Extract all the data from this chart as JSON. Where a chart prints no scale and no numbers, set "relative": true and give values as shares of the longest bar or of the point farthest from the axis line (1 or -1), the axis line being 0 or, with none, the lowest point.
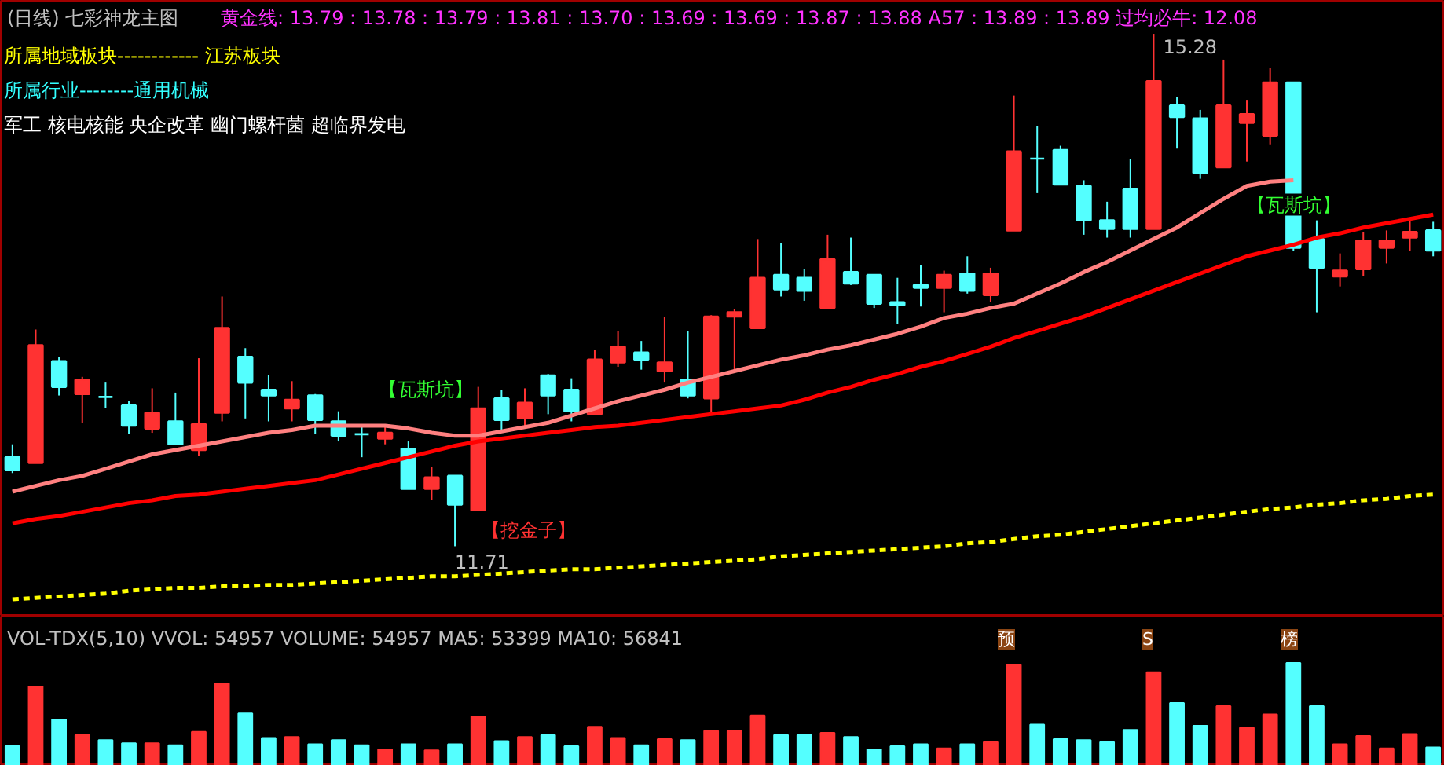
{
  "chart_data": [
    {
      "type": "candlestick",
      "title": "(日线)  七彩神龙主图",
      "subtitle": "黄金线: 13.79 : 13.78 : 13.79 : 13.81 : 13.70 : 13.69 : 13.69 : 13.87 : 13.88 A57 : 13.89 : 13.89  过均必牛: 12.08",
      "annotations": [
        "所属地域板块------------  江苏板块",
        "所属行业--------通用机械",
        "军工 核电核能 央企改革 幽门螺杆菌 超临界发电",
        "15.28",
        "11.71",
        "【挖金子】",
        "【瓦斯坑】",
        "【瓦斯坑】"
      ],
      "categories": [
        null,
        null,
        null,
        null,
        null,
        null,
        null,
        null,
        null,
        null,
        null,
        null,
        null,
        null,
        null,
        null,
        null,
        null,
        null,
        null,
        null,
        null,
        null,
        null,
        null,
        null,
        null,
        null,
        null,
        null,
        null,
        null,
        null,
        null,
        null,
        null,
        null,
        null,
        null,
        null,
        null,
        null,
        null,
        null,
        null,
        null,
        null,
        null,
        null,
        null,
        null,
        null,
        null,
        null,
        null,
        null,
        null,
        null,
        null,
        null,
        null,
        null
      ],
      "ylim": [
        11.22,
        15.51
      ],
      "tick_labels": false,
      "ohlc": [
        [
          12.33,
          12.42,
          12.22,
          12.24
        ],
        [
          12.29,
          13.22,
          12.29,
          13.11
        ],
        [
          13.0,
          13.03,
          12.76,
          12.82
        ],
        [
          12.77,
          12.89,
          12.57,
          12.87
        ],
        [
          12.75,
          12.85,
          12.67,
          12.75
        ],
        [
          12.69,
          12.72,
          12.49,
          12.55
        ],
        [
          12.53,
          12.81,
          12.5,
          12.64
        ],
        [
          12.58,
          12.78,
          12.42,
          12.42
        ],
        [
          12.38,
          13.02,
          12.34,
          12.56
        ],
        [
          12.64,
          13.45,
          12.58,
          13.23
        ],
        [
          13.03,
          13.09,
          12.6,
          12.85
        ],
        [
          12.8,
          12.9,
          12.58,
          12.76
        ],
        [
          12.67,
          12.86,
          12.58,
          12.73
        ],
        [
          12.76,
          12.77,
          12.49,
          12.59
        ],
        [
          12.58,
          12.65,
          12.44,
          12.48
        ],
        [
          12.49,
          12.55,
          12.33,
          12.49
        ],
        [
          12.46,
          12.56,
          12.42,
          12.5
        ],
        [
          12.39,
          12.44,
          12.11,
          12.11
        ],
        [
          12.11,
          12.26,
          12.03,
          12.19
        ],
        [
          12.2,
          12.2,
          11.71,
          12.0
        ],
        [
          11.96,
          12.82,
          11.96,
          12.67
        ],
        [
          12.74,
          12.8,
          12.52,
          12.59
        ],
        [
          12.6,
          12.81,
          12.55,
          12.71
        ],
        [
          12.9,
          12.91,
          12.63,
          12.76
        ],
        [
          12.8,
          12.88,
          12.58,
          12.65
        ],
        [
          12.63,
          13.08,
          12.63,
          13.01
        ],
        [
          12.99,
          13.21,
          12.96,
          13.1
        ],
        [
          13.06,
          13.14,
          12.94,
          13.01
        ],
        [
          12.93,
          13.31,
          12.85,
          12.99
        ],
        [
          12.87,
          13.21,
          12.74,
          12.76
        ],
        [
          12.74,
          13.32,
          12.63,
          13.31
        ],
        [
          13.31,
          13.36,
          12.93,
          13.34
        ],
        [
          13.23,
          13.85,
          13.23,
          13.58
        ],
        [
          13.6,
          13.82,
          13.45,
          13.5
        ],
        [
          13.58,
          13.64,
          13.42,
          13.49
        ],
        [
          13.37,
          13.88,
          13.37,
          13.71
        ],
        [
          13.62,
          13.86,
          13.53,
          13.54
        ],
        [
          13.6,
          13.6,
          13.37,
          13.4
        ],
        [
          13.41,
          13.58,
          13.26,
          13.39
        ],
        [
          13.53,
          13.67,
          13.38,
          13.51
        ],
        [
          13.51,
          13.63,
          13.34,
          13.6
        ],
        [
          13.61,
          13.73,
          13.47,
          13.49
        ],
        [
          13.46,
          13.65,
          13.41,
          13.61
        ],
        [
          13.91,
          14.85,
          13.91,
          14.46
        ],
        [
          14.41,
          14.64,
          14.17,
          14.41
        ],
        [
          14.47,
          14.5,
          14.23,
          14.23
        ],
        [
          14.22,
          14.26,
          13.88,
          13.98
        ],
        [
          13.98,
          14.11,
          13.86,
          13.92
        ],
        [
          14.2,
          14.41,
          13.86,
          13.92
        ],
        [
          13.92,
          15.28,
          13.92,
          14.95
        ],
        [
          14.78,
          14.84,
          14.48,
          14.7
        ],
        [
          14.69,
          14.75,
          14.27,
          14.31
        ],
        [
          14.35,
          15.1,
          14.35,
          14.78
        ],
        [
          14.66,
          14.82,
          14.39,
          14.72
        ],
        [
          14.57,
          15.04,
          14.51,
          14.94
        ],
        [
          14.94,
          14.94,
          13.77,
          13.79
        ],
        [
          13.85,
          13.98,
          13.34,
          13.65
        ],
        [
          13.59,
          13.75,
          13.52,
          13.63
        ],
        [
          13.64,
          13.9,
          13.59,
          13.84
        ],
        [
          13.79,
          13.91,
          13.68,
          13.84
        ],
        [
          13.86,
          13.99,
          13.77,
          13.9
        ],
        [
          13.91,
          13.97,
          13.73,
          13.77
        ]
      ],
      "colors": [
        "#54ffff",
        "#ff3232",
        "#54ffff",
        "#ff3232",
        "#54ffff",
        "#54ffff",
        "#ff3232",
        "#54ffff",
        "#ff3232",
        "#ff3232",
        "#54ffff",
        "#54ffff",
        "#ff3232",
        "#54ffff",
        "#54ffff",
        "#54ffff",
        "#ff3232",
        "#54ffff",
        "#ff3232",
        "#54ffff",
        "#ff3232",
        "#54ffff",
        "#ff3232",
        "#54ffff",
        "#54ffff",
        "#ff3232",
        "#ff3232",
        "#54ffff",
        "#ff3232",
        "#54ffff",
        "#ff3232",
        "#ff3232",
        "#ff3232",
        "#54ffff",
        "#54ffff",
        "#ff3232",
        "#54ffff",
        "#54ffff",
        "#54ffff",
        "#54ffff",
        "#ff3232",
        "#54ffff",
        "#ff3232",
        "#ff3232",
        "#54ffff",
        "#54ffff",
        "#54ffff",
        "#54ffff",
        "#54ffff",
        "#ff3232",
        "#54ffff",
        "#54ffff",
        "#ff3232",
        "#ff3232",
        "#ff3232",
        "#54ffff",
        "#54ffff",
        "#ff3232",
        "#ff3232",
        "#ff3232",
        "#ff3232",
        "#54ffff"
      ],
      "series": [
        {
          "type": "line",
          "color": "#ff0000",
          "values": [
            11.87,
            11.9,
            11.92,
            11.95,
            11.98,
            12.01,
            12.03,
            12.06,
            12.07,
            12.09,
            12.11,
            12.13,
            12.15,
            12.17,
            12.21,
            12.25,
            12.29,
            12.33,
            12.37,
            12.41,
            12.44,
            12.46,
            12.48,
            12.5,
            12.52,
            12.54,
            12.55,
            12.57,
            12.59,
            12.61,
            12.63,
            12.65,
            12.67,
            12.69,
            12.73,
            12.78,
            12.82,
            12.87,
            12.91,
            12.96,
            13.0,
            13.05,
            13.1,
            13.16,
            13.21,
            13.26,
            13.31,
            13.37,
            13.43,
            13.49,
            13.55,
            13.61,
            13.67,
            13.73,
            13.77,
            13.81,
            13.86,
            13.89,
            13.93,
            13.96,
            13.99,
            14.02
          ]
        },
        {
          "type": "line",
          "color": "#ff8080",
          "values": [
            12.09,
            12.13,
            12.17,
            12.2,
            12.25,
            12.3,
            12.35,
            12.38,
            12.41,
            12.44,
            12.47,
            12.5,
            12.52,
            12.55,
            12.55,
            12.55,
            12.55,
            12.53,
            12.5,
            12.48,
            12.48,
            12.51,
            12.54,
            12.57,
            12.62,
            12.67,
            12.72,
            12.76,
            12.8,
            12.85,
            12.89,
            12.93,
            12.97,
            13.01,
            13.04,
            13.08,
            13.11,
            13.15,
            13.19,
            13.24,
            13.3,
            13.33,
            13.37,
            13.4,
            13.47,
            13.54,
            13.62,
            13.69,
            13.77,
            13.85,
            13.93,
            14.03,
            14.13,
            14.22,
            14.25,
            14.26,
            null,
            null,
            null,
            null,
            null,
            null
          ]
        },
        {
          "type": "line",
          "color": "#ffff00",
          "line_style": "dashed",
          "values": [
            11.34,
            11.35,
            11.36,
            11.37,
            11.38,
            11.4,
            11.41,
            11.42,
            11.42,
            11.43,
            11.43,
            11.44,
            11.44,
            11.45,
            11.46,
            11.47,
            11.48,
            11.49,
            11.5,
            11.5,
            11.51,
            11.52,
            11.53,
            11.54,
            11.55,
            11.55,
            11.56,
            11.57,
            11.58,
            11.59,
            11.6,
            11.61,
            11.62,
            11.64,
            11.65,
            11.66,
            11.67,
            11.68,
            11.69,
            11.7,
            11.71,
            11.73,
            11.74,
            11.76,
            11.78,
            11.79,
            11.81,
            11.83,
            11.85,
            11.87,
            11.89,
            11.91,
            11.93,
            11.95,
            11.97,
            11.98,
            12.0,
            12.01,
            12.03,
            12.04,
            12.06,
            12.07
          ]
        }
      ]
    },
    {
      "type": "bar",
      "title": "VOL-TDX(5,10)  VVOL: 54957  VOLUME: 54957  MA5: 53399  MA10: 56841",
      "relative": true,
      "tick_labels": false,
      "annotations": [
        "预",
        "S",
        "榜"
      ],
      "categories": [
        null,
        null,
        null,
        null,
        null,
        null,
        null,
        null,
        null,
        null,
        null,
        null,
        null,
        null,
        null,
        null,
        null,
        null,
        null,
        null,
        null,
        null,
        null,
        null,
        null,
        null,
        null,
        null,
        null,
        null,
        null,
        null,
        null,
        null,
        null,
        null,
        null,
        null,
        null,
        null,
        null,
        null,
        null,
        null,
        null,
        null,
        null,
        null,
        null,
        null,
        null,
        null,
        null,
        null,
        null,
        null,
        null,
        null,
        null,
        null,
        null,
        null
      ],
      "values": [
        0.19,
        0.77,
        0.45,
        0.3,
        0.25,
        0.22,
        0.22,
        0.2,
        0.33,
        0.8,
        0.51,
        0.27,
        0.28,
        0.21,
        0.25,
        0.2,
        0.16,
        0.21,
        0.15,
        0.21,
        0.48,
        0.24,
        0.28,
        0.3,
        0.19,
        0.38,
        0.27,
        0.2,
        0.26,
        0.25,
        0.34,
        0.34,
        0.49,
        0.3,
        0.3,
        0.32,
        0.28,
        0.16,
        0.19,
        0.21,
        0.17,
        0.21,
        0.23,
        0.98,
        0.4,
        0.26,
        0.25,
        0.23,
        0.35,
        0.91,
        0.61,
        0.39,
        0.58,
        0.37,
        0.5,
        1,
        0.58,
        0.21,
        0.29,
        0.17,
        0.31,
        0.18
      ],
      "colors": [
        "#54ffff",
        "#ff3232",
        "#54ffff",
        "#ff3232",
        "#54ffff",
        "#54ffff",
        "#ff3232",
        "#54ffff",
        "#ff3232",
        "#ff3232",
        "#54ffff",
        "#54ffff",
        "#ff3232",
        "#54ffff",
        "#54ffff",
        "#54ffff",
        "#ff3232",
        "#54ffff",
        "#ff3232",
        "#54ffff",
        "#ff3232",
        "#54ffff",
        "#ff3232",
        "#54ffff",
        "#54ffff",
        "#ff3232",
        "#ff3232",
        "#54ffff",
        "#ff3232",
        "#54ffff",
        "#ff3232",
        "#ff3232",
        "#ff3232",
        "#54ffff",
        "#54ffff",
        "#ff3232",
        "#54ffff",
        "#54ffff",
        "#54ffff",
        "#54ffff",
        "#ff3232",
        "#54ffff",
        "#ff3232",
        "#ff3232",
        "#54ffff",
        "#54ffff",
        "#54ffff",
        "#54ffff",
        "#54ffff",
        "#ff3232",
        "#54ffff",
        "#54ffff",
        "#ff3232",
        "#ff3232",
        "#ff3232",
        "#54ffff",
        "#54ffff",
        "#ff3232",
        "#ff3232",
        "#ff3232",
        "#ff3232",
        "#54ffff"
      ]
    }
  ]
}
